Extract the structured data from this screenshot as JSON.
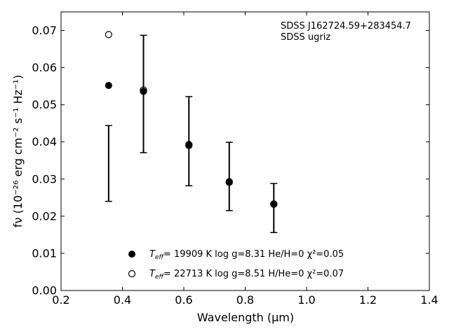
{
  "chart_data": {
    "type": "scatter",
    "xlabel": "Wavelength (μm)",
    "ylabel": "fν (10⁻²⁶ erg cm⁻² s⁻¹ Hz⁻¹)",
    "xlim": [
      0.2,
      1.4
    ],
    "ylim": [
      0.0,
      0.075
    ],
    "x_ticks": [
      "0.2",
      "0.4",
      "0.6",
      "0.8",
      "1.0",
      "1.2",
      "1.4"
    ],
    "y_ticks": [
      "0.00",
      "0.01",
      "0.02",
      "0.03",
      "0.04",
      "0.05",
      "0.06",
      "0.07"
    ],
    "grid": false,
    "legend_position": "lower-center",
    "annotations": [
      "SDSS J162724.59+283454.7",
      "SDSS ugriz"
    ],
    "observed": {
      "x": [
        0.3551,
        0.4686,
        0.6166,
        0.748,
        0.8932
      ],
      "y": [
        0.0342,
        0.0529,
        0.0402,
        0.0307,
        0.0222
      ],
      "yerr": [
        0.0102,
        0.0158,
        0.012,
        0.0092,
        0.0066
      ]
    },
    "series": [
      {
        "name_parts": {
          "teff": "T",
          "teff_sub": "eff",
          "rest": "= 19909 K  log g=8.31  He/H=0  χ²=0.05"
        },
        "marker": "filled-circle",
        "x": [
          0.3551,
          0.4686,
          0.6166,
          0.748,
          0.8932
        ],
        "y": [
          0.0552,
          0.0536,
          0.0393,
          0.0293,
          0.0233
        ]
      },
      {
        "name_parts": {
          "teff": "T",
          "teff_sub": "eff",
          "rest": "= 22713 K  log g=8.51  H/He=0  χ²=0.07"
        },
        "marker": "open-circle",
        "x": [
          0.3551,
          0.4686,
          0.6166,
          0.748,
          0.8932
        ],
        "y": [
          0.0689,
          0.054,
          0.039,
          0.0291,
          0.0232
        ]
      }
    ],
    "colors": {
      "marks": "#000000",
      "background": "#ffffff"
    }
  }
}
